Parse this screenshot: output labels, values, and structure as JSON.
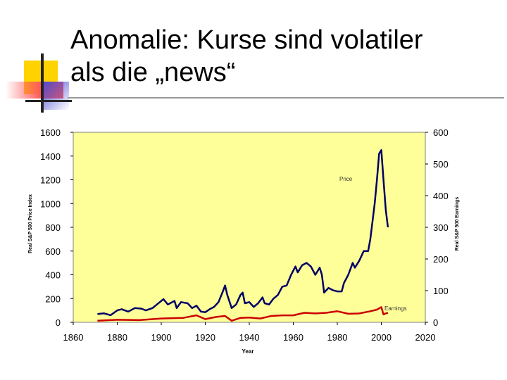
{
  "slide": {
    "title_line1": "Anomalie: Kurse sind volatiler",
    "title_line2": "als die „news“",
    "colors": {
      "deco_yellow": "#ffd200",
      "deco_red": "#ff5a5a",
      "deco_blue": "#4a4ad0",
      "rule": "#999999"
    }
  },
  "chart_data": {
    "type": "line",
    "title": "",
    "xlabel": "Year",
    "ylabel_left": "Real S&P 500 Price Index",
    "ylabel_right": "Real S&P 500 Earnings",
    "xlim": [
      1860,
      2020
    ],
    "ylim_left": [
      0,
      1600
    ],
    "ylim_right": [
      0,
      600
    ],
    "x_ticks": [
      "1860",
      "1880",
      "1900",
      "1920",
      "1940",
      "1960",
      "1980",
      "2000",
      "2020"
    ],
    "y_ticks_left": [
      "0",
      "200",
      "400",
      "600",
      "800",
      "1000",
      "1200",
      "1400",
      "1600"
    ],
    "y_ticks_right": [
      "0",
      "100",
      "200",
      "300",
      "400",
      "500",
      "600"
    ],
    "plot_background": "#ffff99",
    "grid": false,
    "series": [
      {
        "name": "Price",
        "axis": "left",
        "color": "#000066",
        "points": [
          [
            1871,
            70
          ],
          [
            1874,
            75
          ],
          [
            1877,
            60
          ],
          [
            1880,
            100
          ],
          [
            1882,
            110
          ],
          [
            1885,
            90
          ],
          [
            1888,
            120
          ],
          [
            1891,
            115
          ],
          [
            1893,
            100
          ],
          [
            1896,
            120
          ],
          [
            1899,
            165
          ],
          [
            1901,
            195
          ],
          [
            1903,
            150
          ],
          [
            1906,
            180
          ],
          [
            1907,
            120
          ],
          [
            1909,
            170
          ],
          [
            1912,
            160
          ],
          [
            1914,
            120
          ],
          [
            1916,
            140
          ],
          [
            1918,
            90
          ],
          [
            1920,
            85
          ],
          [
            1922,
            110
          ],
          [
            1924,
            130
          ],
          [
            1926,
            170
          ],
          [
            1928,
            260
          ],
          [
            1929,
            310
          ],
          [
            1930,
            230
          ],
          [
            1932,
            120
          ],
          [
            1934,
            150
          ],
          [
            1936,
            230
          ],
          [
            1937,
            250
          ],
          [
            1938,
            160
          ],
          [
            1940,
            170
          ],
          [
            1942,
            130
          ],
          [
            1944,
            160
          ],
          [
            1946,
            210
          ],
          [
            1947,
            160
          ],
          [
            1949,
            150
          ],
          [
            1951,
            200
          ],
          [
            1953,
            230
          ],
          [
            1955,
            300
          ],
          [
            1957,
            310
          ],
          [
            1959,
            400
          ],
          [
            1961,
            470
          ],
          [
            1962,
            420
          ],
          [
            1964,
            480
          ],
          [
            1966,
            500
          ],
          [
            1968,
            470
          ],
          [
            1970,
            400
          ],
          [
            1972,
            460
          ],
          [
            1973,
            400
          ],
          [
            1974,
            250
          ],
          [
            1976,
            290
          ],
          [
            1978,
            270
          ],
          [
            1980,
            260
          ],
          [
            1982,
            260
          ],
          [
            1983,
            330
          ],
          [
            1985,
            400
          ],
          [
            1987,
            500
          ],
          [
            1988,
            460
          ],
          [
            1990,
            520
          ],
          [
            1992,
            600
          ],
          [
            1994,
            600
          ],
          [
            1995,
            700
          ],
          [
            1996,
            850
          ],
          [
            1997,
            1000
          ],
          [
            1998,
            1200
          ],
          [
            1999,
            1420
          ],
          [
            2000,
            1450
          ],
          [
            2001,
            1200
          ],
          [
            2002,
            950
          ],
          [
            2003,
            800
          ]
        ]
      },
      {
        "name": "Earnings",
        "axis": "right",
        "color": "#cc0000",
        "points": [
          [
            1871,
            5
          ],
          [
            1880,
            8
          ],
          [
            1890,
            7
          ],
          [
            1900,
            12
          ],
          [
            1910,
            14
          ],
          [
            1916,
            22
          ],
          [
            1920,
            10
          ],
          [
            1925,
            17
          ],
          [
            1929,
            20
          ],
          [
            1932,
            5
          ],
          [
            1936,
            14
          ],
          [
            1940,
            15
          ],
          [
            1945,
            12
          ],
          [
            1950,
            20
          ],
          [
            1955,
            22
          ],
          [
            1960,
            22
          ],
          [
            1965,
            30
          ],
          [
            1970,
            28
          ],
          [
            1975,
            30
          ],
          [
            1980,
            35
          ],
          [
            1985,
            27
          ],
          [
            1990,
            28
          ],
          [
            1995,
            35
          ],
          [
            1998,
            40
          ],
          [
            2000,
            48
          ],
          [
            2001,
            25
          ],
          [
            2002,
            28
          ],
          [
            2003,
            30
          ]
        ]
      }
    ]
  }
}
